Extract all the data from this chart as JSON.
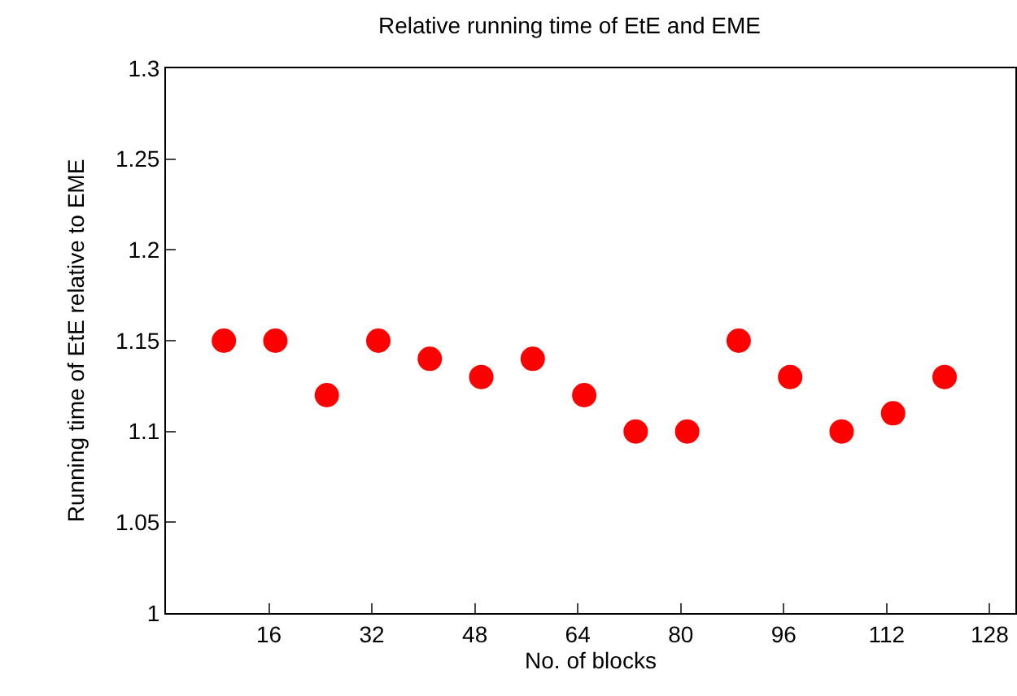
{
  "chart_data": {
    "type": "scatter",
    "title": "Relative running time of EtE and EME",
    "xlabel": "No. of blocks",
    "ylabel": "Running time of EtE relative to EME",
    "x": [
      9,
      17,
      25,
      33,
      41,
      49,
      57,
      65,
      73,
      81,
      89,
      97,
      105,
      113,
      121
    ],
    "series": [
      {
        "color": "#ff0000",
        "values": [
          1.15,
          1.15,
          1.12,
          1.15,
          1.14,
          1.13,
          1.14,
          1.12,
          1.1,
          1.1,
          1.15,
          1.13,
          1.1,
          1.11,
          1.13
        ]
      }
    ],
    "xlim": [
      0,
      132
    ],
    "xticks": [
      16,
      32,
      48,
      64,
      80,
      96,
      112,
      128
    ],
    "ylim": [
      1,
      1.3
    ],
    "yticks": [
      1,
      1.05,
      1.1,
      1.15,
      1.2,
      1.25,
      1.3
    ],
    "marker": "circle"
  }
}
